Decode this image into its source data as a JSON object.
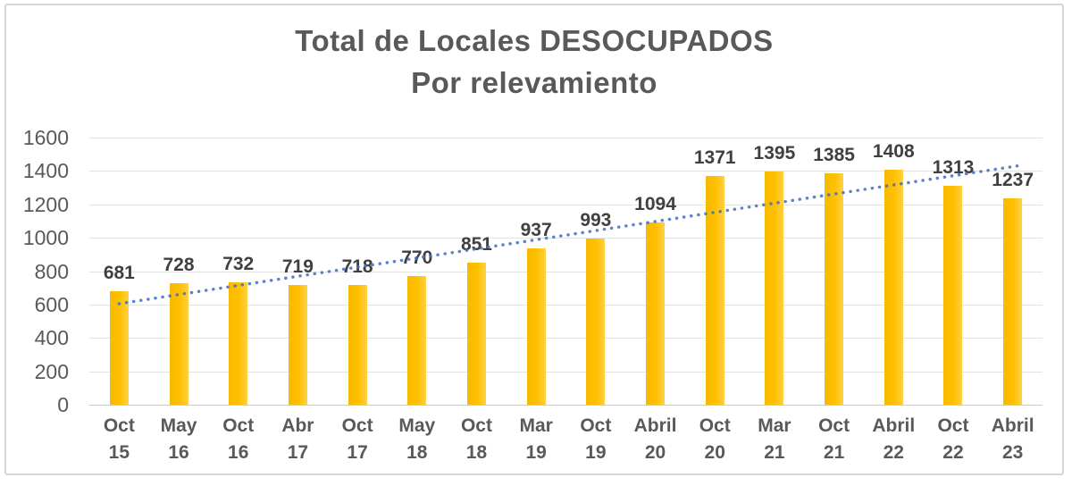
{
  "chart_data": {
    "type": "bar",
    "title_lines": [
      "Total de Locales DESOCUPADOS",
      "Por relevamiento"
    ],
    "categories": [
      "Oct 15",
      "May 16",
      "Oct 16",
      "Abr 17",
      "Oct 17",
      "May 18",
      "Oct 18",
      "Mar 19",
      "Oct 19",
      "Abril 20",
      "Oct 20",
      "Mar 21",
      "Oct 21",
      "Abril 22",
      "Oct 22",
      "Abril 23"
    ],
    "values": [
      681,
      728,
      732,
      719,
      718,
      770,
      851,
      937,
      993,
      1094,
      1371,
      1395,
      1385,
      1408,
      1313,
      1237
    ],
    "xlabel": "",
    "ylabel": "",
    "ylim": [
      0,
      1600
    ],
    "ytick_step": 200,
    "grid": true,
    "legend": "none",
    "bar_color": "#FFC000",
    "value_label_color": "#404040",
    "axis_text_color": "#595959",
    "title_color": "#595959",
    "gridline_color": "#e3e3e3",
    "axis_line_color": "#c9c9c9",
    "trendline": {
      "type": "linear",
      "style": "dotted",
      "color": "#4472C4",
      "start_value": 605,
      "end_value": 1435
    }
  }
}
